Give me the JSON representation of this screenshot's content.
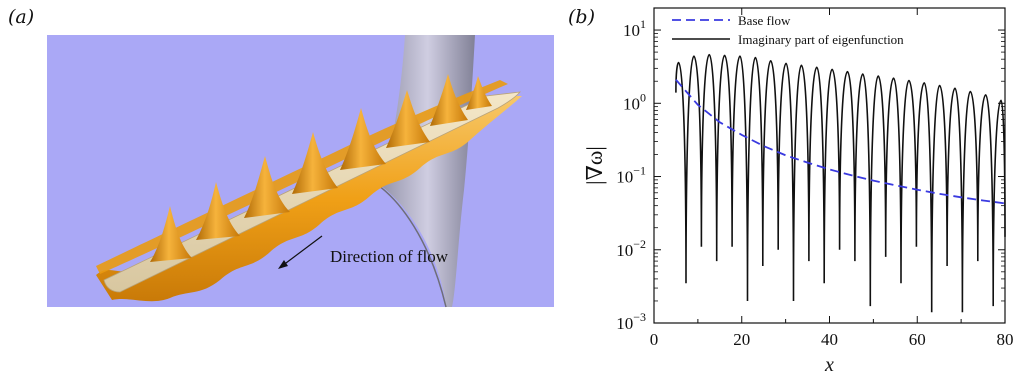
{
  "figure": {
    "panel_a_label": "(a)",
    "panel_b_label": "(b)",
    "panel_a": {
      "annotation": "Direction of flow",
      "background_color": "#aaa8f6",
      "surface_color": "#f0a017",
      "ridge_count": 8
    }
  },
  "chart_data": {
    "type": "line",
    "xlabel": "x",
    "ylabel": "|∇ω|",
    "y_scale": "log",
    "xlim": [
      0,
      80
    ],
    "ylim": [
      0.001,
      20
    ],
    "x_ticks": [
      0,
      20,
      40,
      60,
      80
    ],
    "y_ticks": [
      {
        "value": 10,
        "base": "10",
        "exp": "1"
      },
      {
        "value": 1,
        "base": "10",
        "exp": "0"
      },
      {
        "value": 0.1,
        "base": "10",
        "exp": "−1"
      },
      {
        "value": 0.01,
        "base": "10",
        "exp": "−2"
      },
      {
        "value": 0.001,
        "base": "10",
        "exp": "−3"
      }
    ],
    "legend_position": "top-left",
    "series": [
      {
        "name": "Base flow",
        "style": "dashed",
        "color": "#3a3ae0",
        "x": [
          5,
          10,
          15,
          20,
          25,
          30,
          35,
          40,
          45,
          50,
          55,
          60,
          65,
          70,
          75,
          80
        ],
        "y": [
          2.1,
          0.95,
          0.55,
          0.37,
          0.26,
          0.195,
          0.155,
          0.125,
          0.104,
          0.088,
          0.076,
          0.066,
          0.058,
          0.052,
          0.047,
          0.043
        ]
      },
      {
        "name": "Imaginary part of eigenfunction",
        "style": "solid",
        "color": "#111111",
        "peaks": {
          "x": [
            5.6,
            9.1,
            12.6,
            16.1,
            19.6,
            23.1,
            26.6,
            30.1,
            33.6,
            37.1,
            40.6,
            44.1,
            47.6,
            51.1,
            54.6,
            58.1,
            61.6,
            65.1,
            68.6,
            72.1,
            75.6,
            79.1
          ],
          "y": [
            3.6,
            4.4,
            4.6,
            4.5,
            4.4,
            4.2,
            3.8,
            3.5,
            3.3,
            3.1,
            2.9,
            2.7,
            2.5,
            2.35,
            2.2,
            2.05,
            1.9,
            1.75,
            1.6,
            1.45,
            1.3,
            1.1
          ]
        },
        "minima": {
          "x": [
            7.3,
            10.8,
            14.3,
            17.8,
            21.3,
            24.8,
            28.3,
            31.8,
            35.3,
            38.8,
            42.3,
            45.8,
            49.3,
            52.8,
            56.3,
            59.8,
            63.3,
            66.8,
            70.3,
            73.8,
            77.3,
            80
          ],
          "y": [
            0.0035,
            0.011,
            0.007,
            0.011,
            0.002,
            0.006,
            0.01,
            0.002,
            0.007,
            0.0035,
            0.01,
            0.007,
            0.0017,
            0.008,
            0.0035,
            0.011,
            0.0014,
            0.006,
            0.0014,
            0.007,
            0.0017,
            0.015
          ]
        }
      }
    ]
  }
}
